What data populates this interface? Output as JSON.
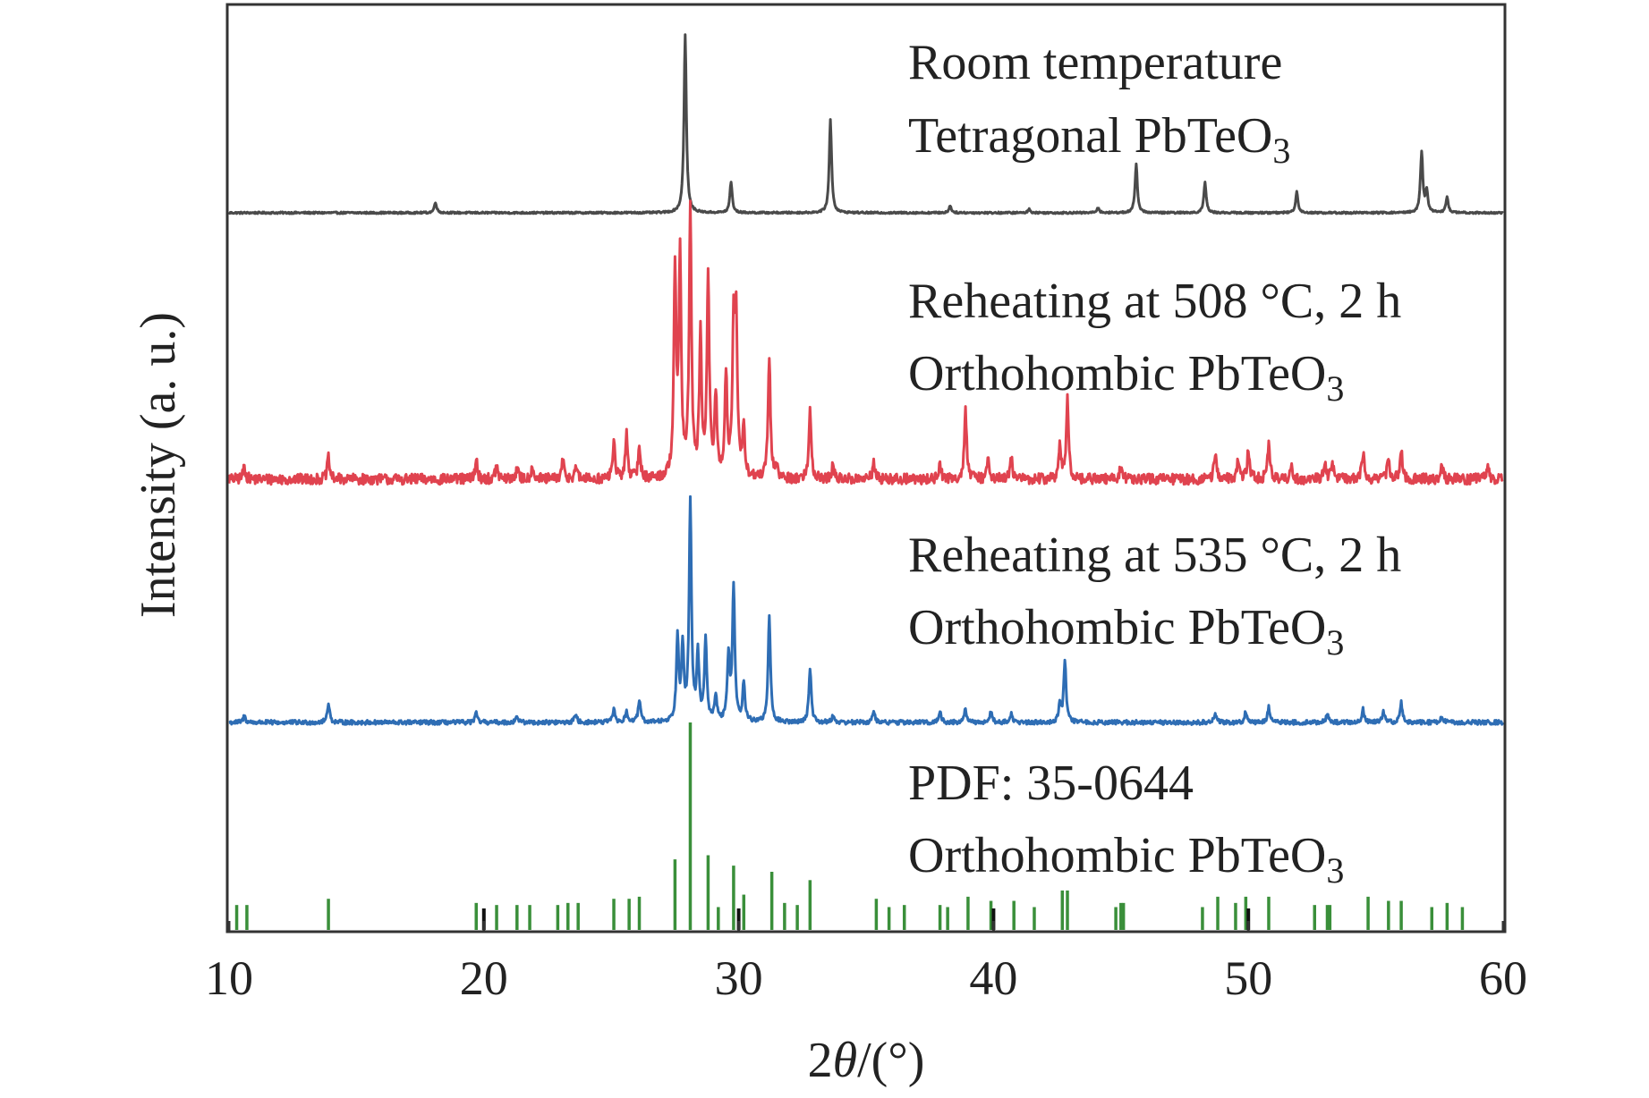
{
  "chart_data": {
    "type": "line",
    "title": "",
    "xlabel": "2θ/(°)",
    "xlabel_parts": {
      "prefix": "2",
      "italic": "θ",
      "suffix": "/(°)"
    },
    "ylabel": "Intensity (a. u.)",
    "xlim": [
      10,
      60
    ],
    "xticks": [
      10,
      20,
      30,
      40,
      50,
      60
    ],
    "xtick_labels": [
      "10",
      "20",
      "30",
      "40",
      "50",
      "60"
    ],
    "grid": false,
    "legend": "inline labels, right side",
    "colors": {
      "room": "#4a4a4a",
      "r508": "#e0434f",
      "r535": "#2e6db4",
      "pdf": "#3a8f3a",
      "pdf_marker": "#111111",
      "frame": "#333333"
    },
    "series": [
      {
        "name": "Room temperature Tetragonal PbTeO3",
        "label_lines": [
          "Room temperature",
          "Tetragonal PbTeO",
          "3"
        ],
        "color_key": "room",
        "offset_level": 3,
        "noise": 0.005,
        "peaks": [
          [
            18.1,
            0.06
          ],
          [
            27.9,
            1.0
          ],
          [
            29.7,
            0.17
          ],
          [
            33.6,
            0.52
          ],
          [
            38.3,
            0.04
          ],
          [
            41.4,
            0.02
          ],
          [
            44.1,
            0.03
          ],
          [
            45.6,
            0.27
          ],
          [
            48.3,
            0.17
          ],
          [
            51.9,
            0.12
          ],
          [
            56.8,
            0.34
          ],
          [
            57.0,
            0.12
          ],
          [
            57.8,
            0.09
          ]
        ]
      },
      {
        "name": "Reheating at 508 °C, 2 h Orthohombic PbTeO3",
        "label_lines": [
          "Reheating at 508 °C, 2 h",
          "Orthohombic PbTeO",
          "3"
        ],
        "color_key": "r508",
        "offset_level": 2,
        "noise": 0.02,
        "peaks": [
          [
            10.6,
            0.05
          ],
          [
            13.9,
            0.08
          ],
          [
            19.7,
            0.07
          ],
          [
            20.5,
            0.05
          ],
          [
            21.3,
            0.04
          ],
          [
            21.9,
            0.05
          ],
          [
            23.1,
            0.07
          ],
          [
            23.6,
            0.05
          ],
          [
            25.1,
            0.14
          ],
          [
            25.6,
            0.17
          ],
          [
            26.1,
            0.12
          ],
          [
            27.5,
            0.78
          ],
          [
            27.7,
            0.82
          ],
          [
            28.1,
            1.0
          ],
          [
            28.5,
            0.52
          ],
          [
            28.8,
            0.75
          ],
          [
            29.1,
            0.3
          ],
          [
            29.5,
            0.38
          ],
          [
            29.8,
            0.56
          ],
          [
            29.9,
            0.55
          ],
          [
            30.2,
            0.18
          ],
          [
            31.2,
            0.45
          ],
          [
            31.5,
            0.05
          ],
          [
            32.8,
            0.26
          ],
          [
            33.7,
            0.05
          ],
          [
            35.3,
            0.06
          ],
          [
            37.9,
            0.06
          ],
          [
            38.9,
            0.26
          ],
          [
            39.8,
            0.08
          ],
          [
            40.7,
            0.08
          ],
          [
            42.6,
            0.12
          ],
          [
            42.9,
            0.3
          ],
          [
            45.0,
            0.05
          ],
          [
            48.7,
            0.1
          ],
          [
            49.6,
            0.08
          ],
          [
            50.0,
            0.11
          ],
          [
            50.8,
            0.14
          ],
          [
            51.7,
            0.05
          ],
          [
            53.0,
            0.07
          ],
          [
            53.3,
            0.06
          ],
          [
            54.5,
            0.1
          ],
          [
            55.5,
            0.08
          ],
          [
            56.0,
            0.11
          ],
          [
            57.6,
            0.05
          ],
          [
            59.4,
            0.05
          ]
        ]
      },
      {
        "name": "Reheating at 535 °C, 2 h Orthohombic PbTeO3",
        "label_lines": [
          "Reheating at 535 °C, 2 h",
          "Orthohombic PbTeO",
          "3"
        ],
        "color_key": "r535",
        "offset_level": 1,
        "noise": 0.01,
        "peaks": [
          [
            10.6,
            0.03
          ],
          [
            13.9,
            0.09
          ],
          [
            19.7,
            0.04
          ],
          [
            21.3,
            0.03
          ],
          [
            23.6,
            0.04
          ],
          [
            25.1,
            0.06
          ],
          [
            25.6,
            0.05
          ],
          [
            26.1,
            0.1
          ],
          [
            27.6,
            0.38
          ],
          [
            27.8,
            0.34
          ],
          [
            28.1,
            1.0
          ],
          [
            28.4,
            0.3
          ],
          [
            28.7,
            0.38
          ],
          [
            29.1,
            0.12
          ],
          [
            29.6,
            0.3
          ],
          [
            29.8,
            0.62
          ],
          [
            30.2,
            0.18
          ],
          [
            31.2,
            0.48
          ],
          [
            32.8,
            0.25
          ],
          [
            33.7,
            0.03
          ],
          [
            35.3,
            0.05
          ],
          [
            37.9,
            0.05
          ],
          [
            38.9,
            0.06
          ],
          [
            39.9,
            0.05
          ],
          [
            40.7,
            0.04
          ],
          [
            42.6,
            0.08
          ],
          [
            42.8,
            0.28
          ],
          [
            48.7,
            0.04
          ],
          [
            49.9,
            0.05
          ],
          [
            50.8,
            0.07
          ],
          [
            53.1,
            0.04
          ],
          [
            54.5,
            0.06
          ],
          [
            55.3,
            0.05
          ],
          [
            56.0,
            0.09
          ],
          [
            57.6,
            0.03
          ]
        ]
      },
      {
        "name": "PDF: 35-0644 Orthohombic PbTeO3",
        "label_lines": [
          "PDF: 35-0644",
          "Orthohombic PbTeO",
          "3"
        ],
        "color_key": "pdf",
        "type": "stick",
        "sticks": [
          [
            10.3,
            0.12
          ],
          [
            10.7,
            0.12
          ],
          [
            13.9,
            0.15
          ],
          [
            19.7,
            0.13
          ],
          [
            20.5,
            0.12
          ],
          [
            21.3,
            0.12
          ],
          [
            21.8,
            0.12
          ],
          [
            22.9,
            0.12
          ],
          [
            23.3,
            0.13
          ],
          [
            23.7,
            0.13
          ],
          [
            25.1,
            0.15
          ],
          [
            25.7,
            0.15
          ],
          [
            26.1,
            0.16
          ],
          [
            27.5,
            0.34
          ],
          [
            28.1,
            1.0
          ],
          [
            28.8,
            0.36
          ],
          [
            29.2,
            0.11
          ],
          [
            29.8,
            0.31
          ],
          [
            30.2,
            0.17
          ],
          [
            31.3,
            0.28
          ],
          [
            31.8,
            0.13
          ],
          [
            32.3,
            0.12
          ],
          [
            32.8,
            0.24
          ],
          [
            35.4,
            0.15
          ],
          [
            35.9,
            0.11
          ],
          [
            36.5,
            0.12
          ],
          [
            37.9,
            0.12
          ],
          [
            38.2,
            0.11
          ],
          [
            39.0,
            0.16
          ],
          [
            39.9,
            0.14
          ],
          [
            40.8,
            0.14
          ],
          [
            41.6,
            0.11
          ],
          [
            42.7,
            0.19
          ],
          [
            42.9,
            0.19
          ],
          [
            44.8,
            0.11
          ],
          [
            45.0,
            0.13
          ],
          [
            45.1,
            0.13
          ],
          [
            48.2,
            0.11
          ],
          [
            48.8,
            0.16
          ],
          [
            49.5,
            0.13
          ],
          [
            49.9,
            0.16
          ],
          [
            50.8,
            0.16
          ],
          [
            52.6,
            0.12
          ],
          [
            53.1,
            0.12
          ],
          [
            53.2,
            0.12
          ],
          [
            54.7,
            0.16
          ],
          [
            55.5,
            0.14
          ],
          [
            56.0,
            0.14
          ],
          [
            57.2,
            0.11
          ],
          [
            57.8,
            0.13
          ],
          [
            58.4,
            0.11
          ]
        ],
        "black_markers": [
          20.0,
          30.0,
          40.0,
          50.0
        ]
      }
    ]
  }
}
